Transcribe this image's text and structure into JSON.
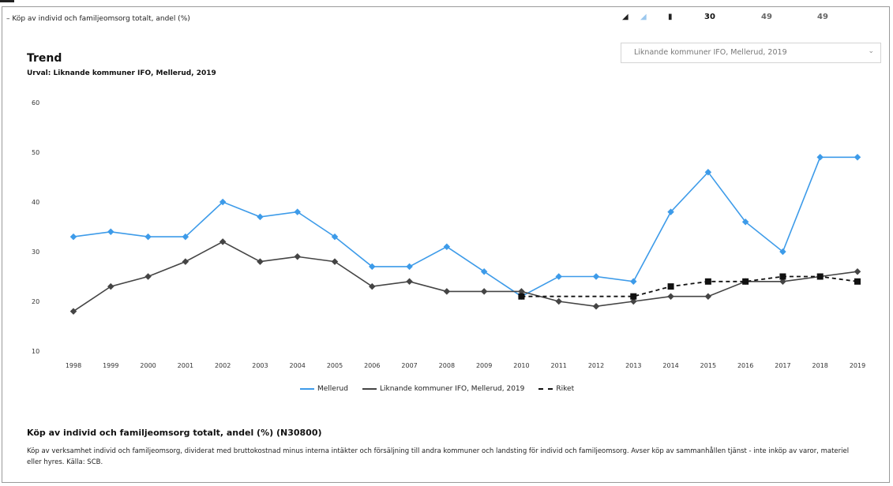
{
  "header": {
    "breadcrumb": "Köp av individ och familjeomsorg totalt, andel (%)",
    "toolbar_values": [
      "30",
      "49",
      "49"
    ]
  },
  "panel": {
    "title": "Trend",
    "subtitle": "Urval: Liknande kommuner IFO, Mellerud, 2019",
    "selector": "Liknande kommuner IFO, Mellerud, 2019"
  },
  "chart_data": {
    "type": "line",
    "x": [
      "1998",
      "1999",
      "2000",
      "2001",
      "2002",
      "2003",
      "2004",
      "2005",
      "2006",
      "2007",
      "2008",
      "2009",
      "2010",
      "2011",
      "2012",
      "2013",
      "2014",
      "2015",
      "2016",
      "2017",
      "2018",
      "2019"
    ],
    "ylim": [
      10,
      60
    ],
    "yticks": [
      10,
      20,
      30,
      40,
      50,
      60
    ],
    "grid": false,
    "legend_position": "bottom",
    "series": [
      {
        "name": "Mellerud",
        "color": "#3d9be9",
        "style": "solid",
        "values": [
          33,
          34,
          33,
          33,
          40,
          37,
          38,
          33,
          27,
          27,
          31,
          26,
          21,
          25,
          25,
          24,
          38,
          46,
          36,
          30,
          49,
          49
        ]
      },
      {
        "name": "Liknande kommuner IFO, Mellerud, 2019",
        "color": "#444444",
        "style": "solid",
        "values": [
          18,
          23,
          25,
          28,
          32,
          28,
          29,
          28,
          23,
          24,
          22,
          22,
          22,
          20,
          19,
          20,
          21,
          21,
          24,
          24,
          25,
          26
        ]
      },
      {
        "name": "Riket",
        "color": "#111111",
        "style": "dashed",
        "values": [
          null,
          null,
          null,
          null,
          null,
          null,
          null,
          null,
          null,
          null,
          null,
          null,
          21,
          null,
          null,
          21,
          23,
          24,
          24,
          25,
          25,
          24
        ]
      }
    ]
  },
  "description": {
    "title": "Köp av individ och familjeomsorg totalt, andel (%) (N30800)",
    "body": "Köp av verksamhet individ och familjeomsorg, dividerat med bruttokostnad minus interna intäkter och försäljning till andra kommuner och landsting för individ och familjeomsorg. Avser köp av sammanhållen tjänst - inte inköp av varor, materiel eller hyres. Källa: SCB."
  }
}
